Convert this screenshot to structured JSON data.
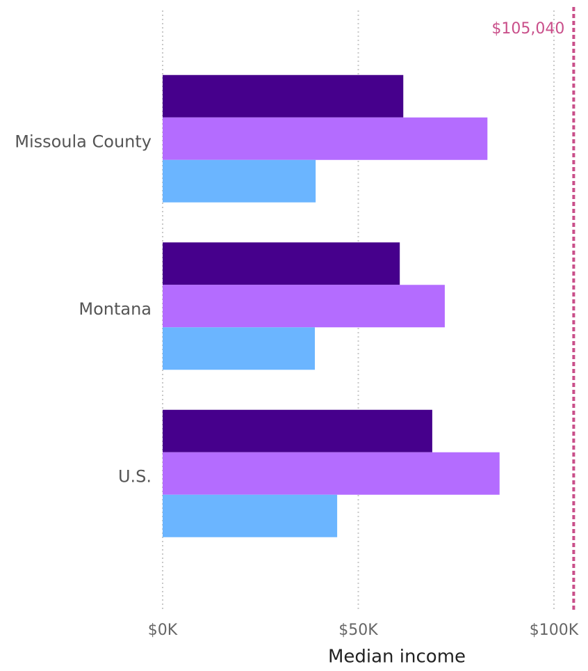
{
  "chart_data": {
    "type": "bar",
    "orientation": "horizontal",
    "x_label": "Median income",
    "categories": [
      "Missoula County",
      "Montana",
      "U.S."
    ],
    "series": [
      {
        "color": "#46008c",
        "values": [
          61500,
          60600,
          68900
        ]
      },
      {
        "color": "#b46cff",
        "values": [
          83000,
          72100,
          86100
        ]
      },
      {
        "color": "#6bb5ff",
        "values": [
          39100,
          38900,
          44600
        ]
      }
    ],
    "xlim": [
      0,
      106000
    ],
    "xticks": [
      {
        "value": 0,
        "label": "$0K"
      },
      {
        "value": 50000,
        "label": "$50K"
      },
      {
        "value": 100000,
        "label": "$100K"
      }
    ],
    "grid": true,
    "reference_line": {
      "value": 105040,
      "label": "$105,040",
      "color": "#c94f8a"
    }
  }
}
